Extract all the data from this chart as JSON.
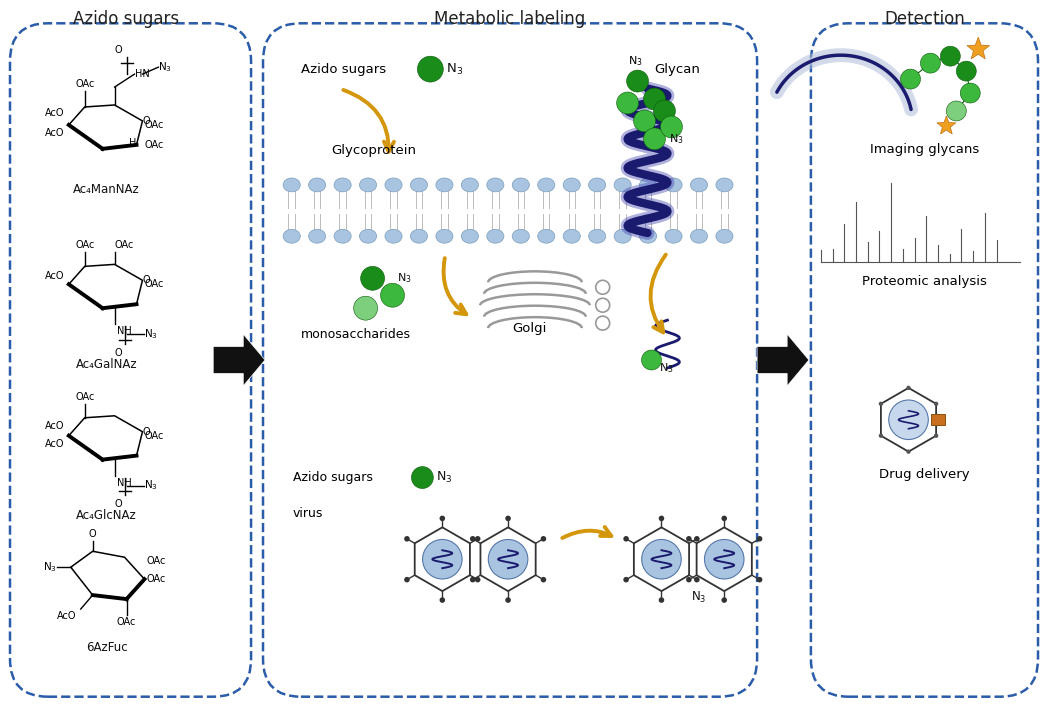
{
  "bg_color": "#ffffff",
  "title_azido": "Azido sugars",
  "title_metabolic": "Metabolic labeling",
  "title_detection": "Detection",
  "label_mannaz": "Ac₄ManNAz",
  "label_galnaz": "Ac₄GalNAz",
  "label_glcnaz": "Ac₄GlcNAz",
  "label_fucose": "6AzFuc",
  "label_azido_sugars": "Azido sugars",
  "label_glycoprotein": "Glycoprotein",
  "label_glycan": "Glycan",
  "label_golgi": "Golgi",
  "label_monosaccharides": "monosaccharides",
  "label_virus": "virus",
  "label_azido_sugars2": "Azido sugars",
  "label_imaging": "Imaging glycans",
  "label_proteomic": "Proteomic analysis",
  "label_drug": "Drug delivery",
  "box_color": "#2a5caa",
  "goldi_arrow_color": "#d4960a",
  "green_dark": "#1a8c1a",
  "green_mid": "#3cb83c",
  "green_light": "#7dce7d",
  "blue_lipid": "#a8c4e0",
  "navy": "#1a1a6e",
  "figsize": [
    10.5,
    7.2
  ],
  "dpi": 100
}
